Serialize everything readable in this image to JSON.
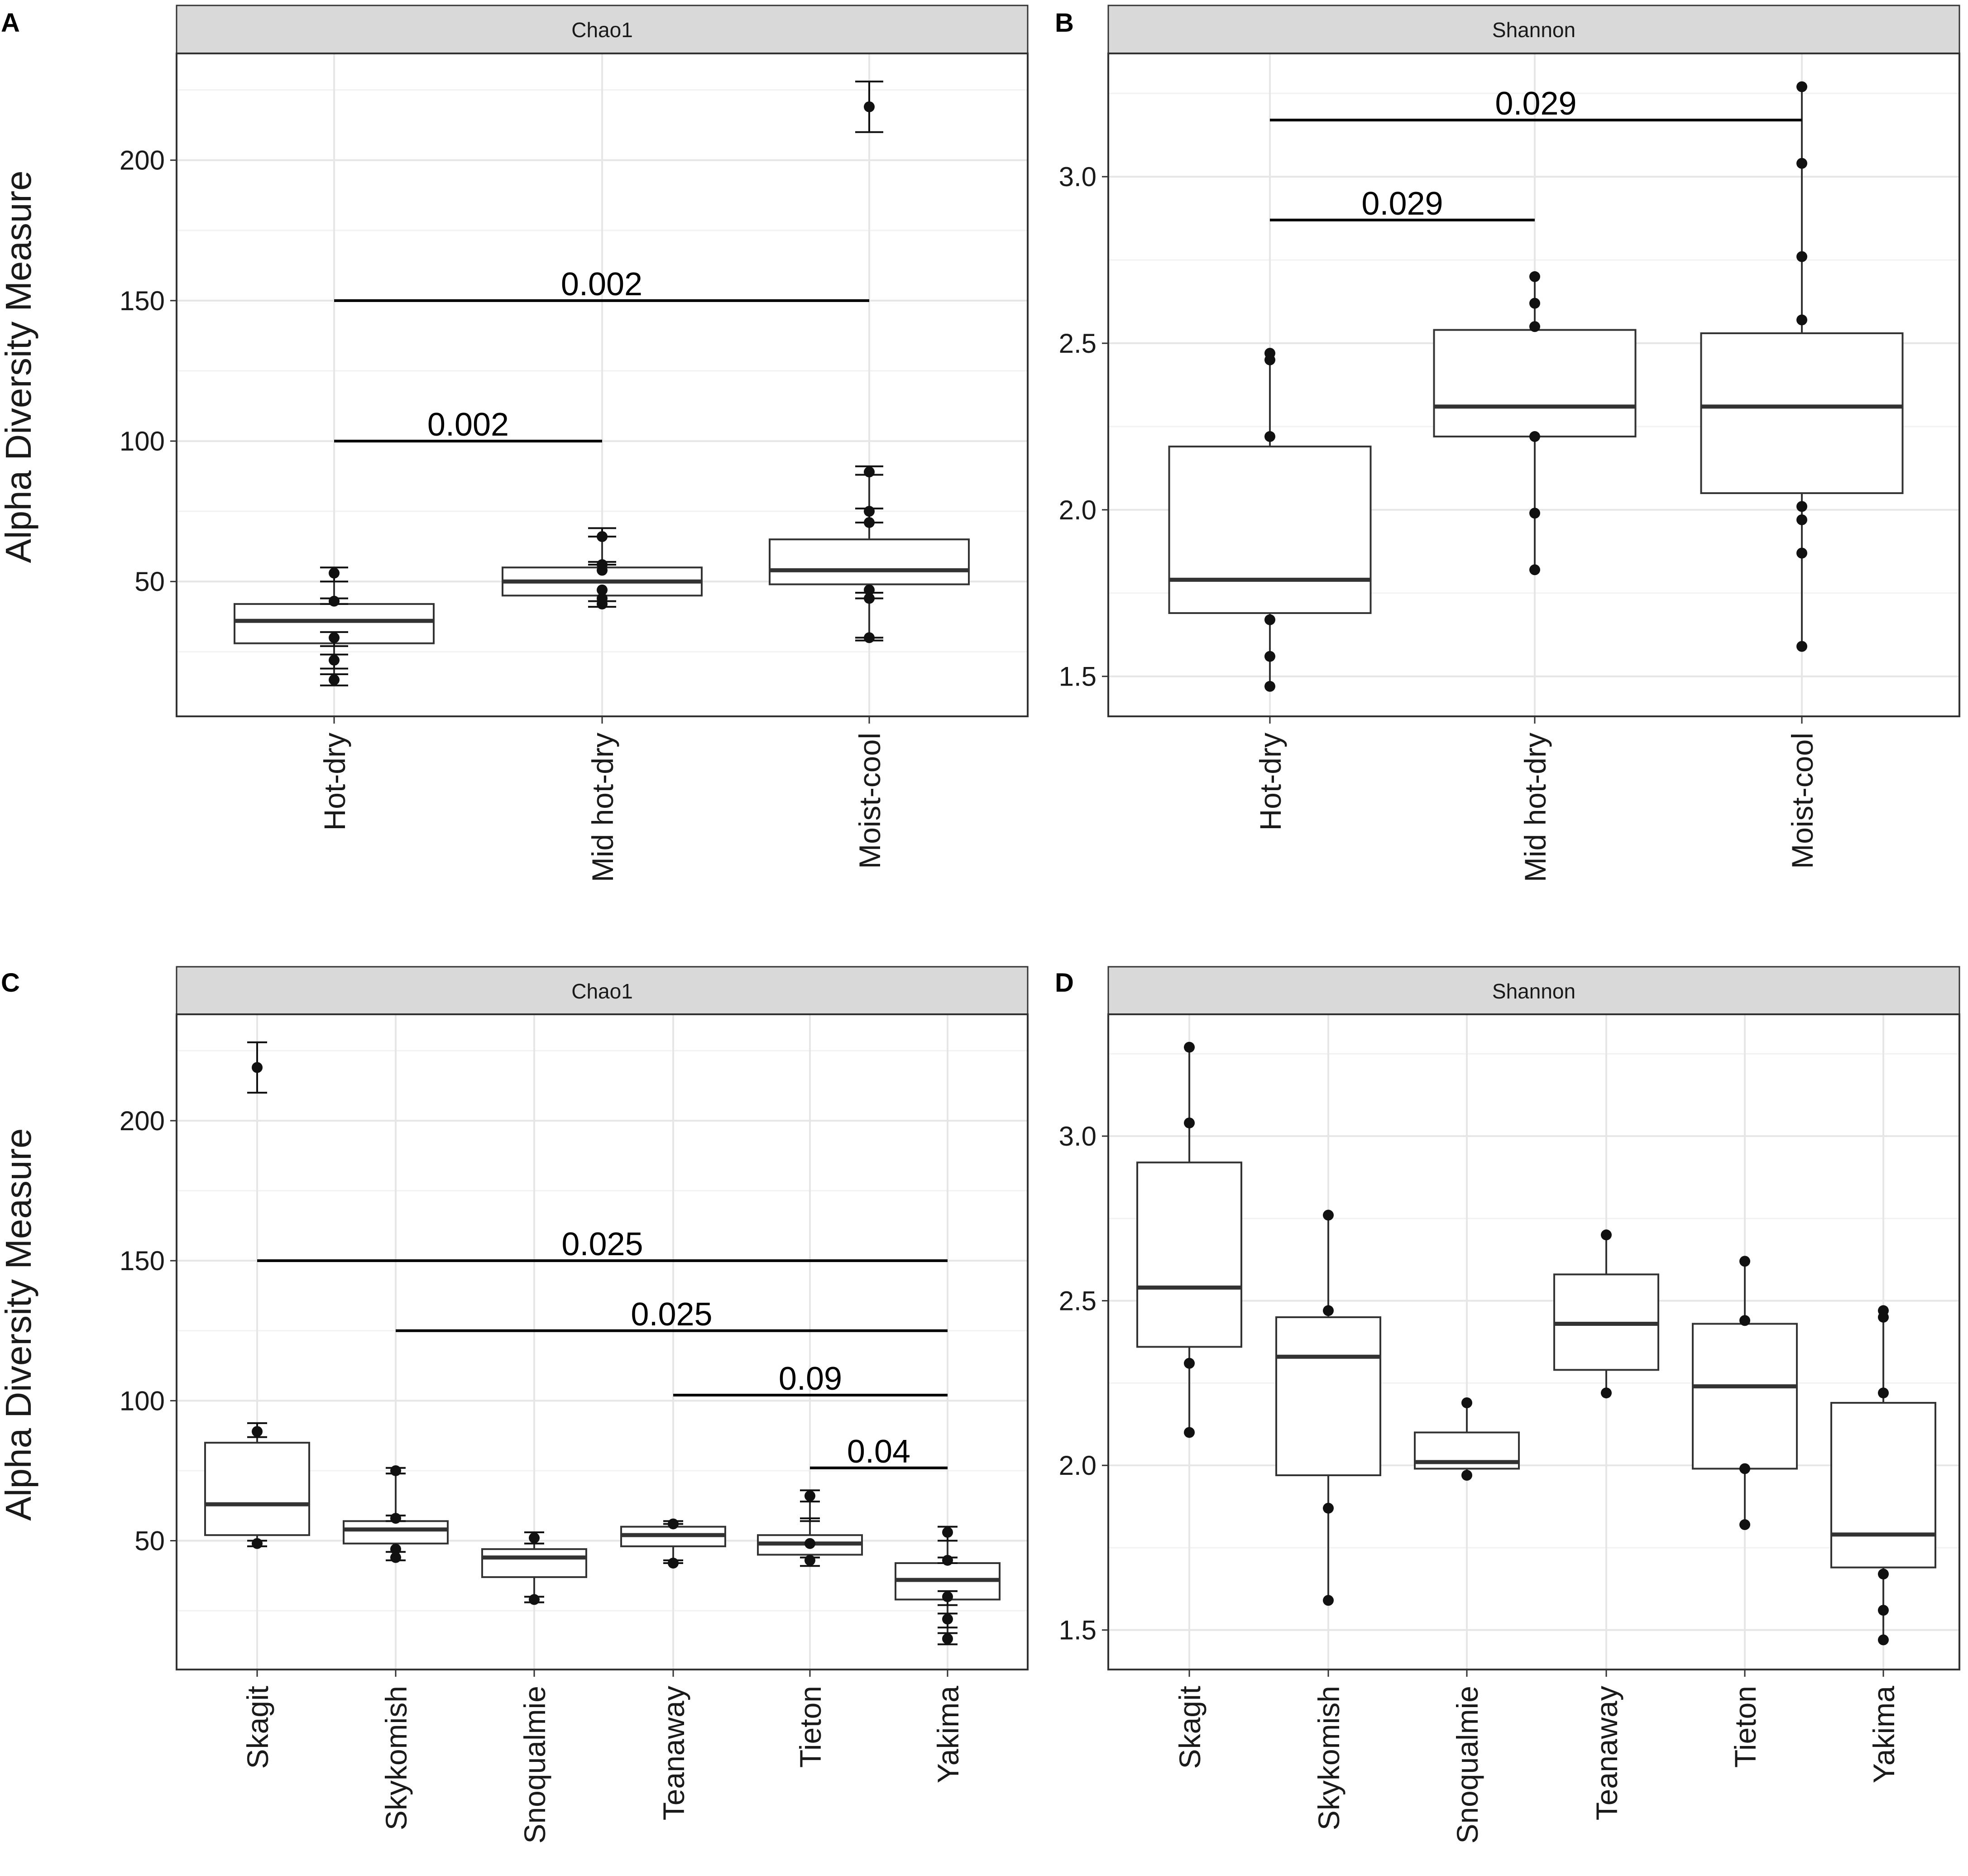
{
  "figure": {
    "y_axis_label": "Alpha Diversity Measure"
  },
  "chart_data": [
    {
      "panel": "A",
      "type": "boxplot",
      "strip_title": "Chao1",
      "categories": [
        "Hot-dry",
        "Mid hot-dry",
        "Moist-cool"
      ],
      "ylim": [
        2,
        238
      ],
      "y_ticks": [
        50,
        100,
        150,
        200
      ],
      "boxes": [
        {
          "q1": 28,
          "median": 36,
          "q3": 42,
          "low": 15,
          "high": 55
        },
        {
          "q1": 45,
          "median": 50,
          "q3": 55,
          "low": 41,
          "high": 69
        },
        {
          "q1": 49,
          "median": 54,
          "q3": 65,
          "low": 29,
          "high": 91
        }
      ],
      "points": [
        {
          "c": 0,
          "y": 15
        },
        {
          "c": 0,
          "y": 22
        },
        {
          "c": 0,
          "y": 30
        },
        {
          "c": 0,
          "y": 43
        },
        {
          "c": 0,
          "y": 53
        },
        {
          "c": 1,
          "y": 42
        },
        {
          "c": 1,
          "y": 44
        },
        {
          "c": 1,
          "y": 47
        },
        {
          "c": 1,
          "y": 54
        },
        {
          "c": 1,
          "y": 56
        },
        {
          "c": 1,
          "y": 66
        },
        {
          "c": 2,
          "y": 30
        },
        {
          "c": 2,
          "y": 44
        },
        {
          "c": 2,
          "y": 47
        },
        {
          "c": 2,
          "y": 71
        },
        {
          "c": 2,
          "y": 75
        },
        {
          "c": 2,
          "y": 89
        },
        {
          "c": 2,
          "y": 219
        }
      ],
      "errorbars": [
        {
          "c": 0,
          "low": 13,
          "high": 17
        },
        {
          "c": 0,
          "low": 19,
          "high": 24
        },
        {
          "c": 0,
          "low": 27,
          "high": 32
        },
        {
          "c": 0,
          "low": 42,
          "high": 44
        },
        {
          "c": 0,
          "low": 50,
          "high": 55
        },
        {
          "c": 1,
          "low": 41,
          "high": 43
        },
        {
          "c": 1,
          "low": 56,
          "high": 57
        },
        {
          "c": 1,
          "low": 66,
          "high": 69
        },
        {
          "c": 2,
          "low": 29,
          "high": 30
        },
        {
          "c": 2,
          "low": 44,
          "high": 46
        },
        {
          "c": 2,
          "low": 71,
          "high": 76
        },
        {
          "c": 2,
          "low": 88,
          "high": 91
        },
        {
          "c": 2,
          "low": 210,
          "high": 228
        }
      ],
      "annotations": [
        {
          "label": "0.002",
          "from": 0,
          "to": 1,
          "y": 100
        },
        {
          "label": "0.002",
          "from": 0,
          "to": 2,
          "y": 150
        }
      ]
    },
    {
      "panel": "B",
      "type": "boxplot",
      "strip_title": "Shannon",
      "categories": [
        "Hot-dry",
        "Mid hot-dry",
        "Moist-cool"
      ],
      "ylim": [
        1.38,
        3.37
      ],
      "y_ticks": [
        1.5,
        2.0,
        2.5,
        3.0
      ],
      "y_tick_labels": [
        "1.5",
        "2.0",
        "2.5",
        "3.0"
      ],
      "boxes": [
        {
          "q1": 1.69,
          "median": 1.79,
          "q3": 2.19,
          "low": 1.47,
          "high": 2.47
        },
        {
          "q1": 2.22,
          "median": 2.31,
          "q3": 2.54,
          "low": 1.82,
          "high": 2.7
        },
        {
          "q1": 2.05,
          "median": 2.31,
          "q3": 2.53,
          "low": 1.59,
          "high": 3.27
        }
      ],
      "points": [
        {
          "c": 0,
          "y": 1.47
        },
        {
          "c": 0,
          "y": 1.56
        },
        {
          "c": 0,
          "y": 1.67
        },
        {
          "c": 0,
          "y": 2.22
        },
        {
          "c": 0,
          "y": 2.45
        },
        {
          "c": 0,
          "y": 2.47
        },
        {
          "c": 1,
          "y": 1.82
        },
        {
          "c": 1,
          "y": 1.99
        },
        {
          "c": 1,
          "y": 2.22
        },
        {
          "c": 1,
          "y": 2.55
        },
        {
          "c": 1,
          "y": 2.62
        },
        {
          "c": 1,
          "y": 2.7
        },
        {
          "c": 2,
          "y": 1.59
        },
        {
          "c": 2,
          "y": 1.87
        },
        {
          "c": 2,
          "y": 1.97
        },
        {
          "c": 2,
          "y": 2.01
        },
        {
          "c": 2,
          "y": 2.57
        },
        {
          "c": 2,
          "y": 2.76
        },
        {
          "c": 2,
          "y": 3.04
        },
        {
          "c": 2,
          "y": 3.27
        }
      ],
      "errorbars": [],
      "annotations": [
        {
          "label": "0.029",
          "from": 0,
          "to": 1,
          "y": 2.87
        },
        {
          "label": "0.029",
          "from": 0,
          "to": 2,
          "y": 3.17
        }
      ]
    },
    {
      "panel": "C",
      "type": "boxplot",
      "strip_title": "Chao1",
      "categories": [
        "Skagit",
        "Skykomish",
        "Snoqualmie",
        "Teanaway",
        "Tieton",
        "Yakima"
      ],
      "ylim": [
        4,
        238
      ],
      "y_ticks": [
        50,
        100,
        150,
        200
      ],
      "boxes": [
        {
          "q1": 52,
          "median": 63,
          "q3": 85,
          "low": 49,
          "high": 91
        },
        {
          "q1": 49,
          "median": 54,
          "q3": 57,
          "low": 44,
          "high": 75
        },
        {
          "q1": 37,
          "median": 44,
          "q3": 47,
          "low": 29,
          "high": 53
        },
        {
          "q1": 48,
          "median": 52,
          "q3": 55,
          "low": 42,
          "high": 57
        },
        {
          "q1": 45,
          "median": 49,
          "q3": 52,
          "low": 41,
          "high": 66
        },
        {
          "q1": 29,
          "median": 36,
          "q3": 42,
          "low": 15,
          "high": 55
        }
      ],
      "points": [
        {
          "c": 0,
          "y": 49
        },
        {
          "c": 0,
          "y": 89
        },
        {
          "c": 0,
          "y": 219
        },
        {
          "c": 1,
          "y": 44
        },
        {
          "c": 1,
          "y": 47
        },
        {
          "c": 1,
          "y": 58
        },
        {
          "c": 1,
          "y": 75
        },
        {
          "c": 2,
          "y": 29
        },
        {
          "c": 2,
          "y": 51
        },
        {
          "c": 3,
          "y": 42
        },
        {
          "c": 3,
          "y": 56
        },
        {
          "c": 4,
          "y": 43
        },
        {
          "c": 4,
          "y": 49
        },
        {
          "c": 4,
          "y": 66
        },
        {
          "c": 5,
          "y": 15
        },
        {
          "c": 5,
          "y": 22
        },
        {
          "c": 5,
          "y": 30
        },
        {
          "c": 5,
          "y": 43
        },
        {
          "c": 5,
          "y": 53
        }
      ],
      "errorbars": [
        {
          "c": 0,
          "low": 48,
          "high": 50
        },
        {
          "c": 0,
          "low": 87,
          "high": 92
        },
        {
          "c": 0,
          "low": 210,
          "high": 228
        },
        {
          "c": 1,
          "low": 43,
          "high": 46
        },
        {
          "c": 1,
          "low": 57,
          "high": 59
        },
        {
          "c": 1,
          "low": 74,
          "high": 76
        },
        {
          "c": 2,
          "low": 28,
          "high": 30
        },
        {
          "c": 2,
          "low": 49,
          "high": 53
        },
        {
          "c": 3,
          "low": 42,
          "high": 43
        },
        {
          "c": 3,
          "low": 56,
          "high": 57
        },
        {
          "c": 4,
          "low": 41,
          "high": 44
        },
        {
          "c": 4,
          "low": 57,
          "high": 58
        },
        {
          "c": 4,
          "low": 64,
          "high": 68
        },
        {
          "c": 5,
          "low": 13,
          "high": 17
        },
        {
          "c": 5,
          "low": 19,
          "high": 24
        },
        {
          "c": 5,
          "low": 27,
          "high": 32
        },
        {
          "c": 5,
          "low": 42,
          "high": 44
        },
        {
          "c": 5,
          "low": 50,
          "high": 55
        }
      ],
      "annotations": [
        {
          "label": "0.025",
          "from": 0,
          "to": 5,
          "y": 150
        },
        {
          "label": "0.025",
          "from": 1,
          "to": 5,
          "y": 125
        },
        {
          "label": "0.09",
          "from": 3,
          "to": 5,
          "y": 102
        },
        {
          "label": "0.04",
          "from": 4,
          "to": 5,
          "y": 76
        }
      ]
    },
    {
      "panel": "D",
      "type": "boxplot",
      "strip_title": "Shannon",
      "categories": [
        "Skagit",
        "Skykomish",
        "Snoqualmie",
        "Teanaway",
        "Tieton",
        "Yakima"
      ],
      "ylim": [
        1.38,
        3.37
      ],
      "y_ticks": [
        1.5,
        2.0,
        2.5,
        3.0
      ],
      "y_tick_labels": [
        "1.5",
        "2.0",
        "2.5",
        "3.0"
      ],
      "boxes": [
        {
          "q1": 2.36,
          "median": 2.54,
          "q3": 2.92,
          "low": 2.1,
          "high": 3.27
        },
        {
          "q1": 1.97,
          "median": 2.33,
          "q3": 2.45,
          "low": 1.59,
          "high": 2.76
        },
        {
          "q1": 1.99,
          "median": 2.01,
          "q3": 2.1,
          "low": 1.97,
          "high": 2.19
        },
        {
          "q1": 2.29,
          "median": 2.43,
          "q3": 2.58,
          "low": 2.22,
          "high": 2.7
        },
        {
          "q1": 1.99,
          "median": 2.24,
          "q3": 2.43,
          "low": 1.82,
          "high": 2.62
        },
        {
          "q1": 1.69,
          "median": 1.79,
          "q3": 2.19,
          "low": 1.47,
          "high": 2.47
        }
      ],
      "points": [
        {
          "c": 0,
          "y": 2.1
        },
        {
          "c": 0,
          "y": 2.31
        },
        {
          "c": 0,
          "y": 3.04
        },
        {
          "c": 0,
          "y": 3.27
        },
        {
          "c": 1,
          "y": 1.59
        },
        {
          "c": 1,
          "y": 1.87
        },
        {
          "c": 1,
          "y": 2.47
        },
        {
          "c": 1,
          "y": 2.76
        },
        {
          "c": 2,
          "y": 1.97
        },
        {
          "c": 2,
          "y": 2.19
        },
        {
          "c": 3,
          "y": 2.22
        },
        {
          "c": 3,
          "y": 2.7
        },
        {
          "c": 4,
          "y": 1.82
        },
        {
          "c": 4,
          "y": 1.99
        },
        {
          "c": 4,
          "y": 2.44
        },
        {
          "c": 4,
          "y": 2.62
        },
        {
          "c": 5,
          "y": 1.47
        },
        {
          "c": 5,
          "y": 1.56
        },
        {
          "c": 5,
          "y": 1.67
        },
        {
          "c": 5,
          "y": 2.22
        },
        {
          "c": 5,
          "y": 2.45
        },
        {
          "c": 5,
          "y": 2.47
        }
      ],
      "errorbars": [],
      "annotations": []
    }
  ]
}
